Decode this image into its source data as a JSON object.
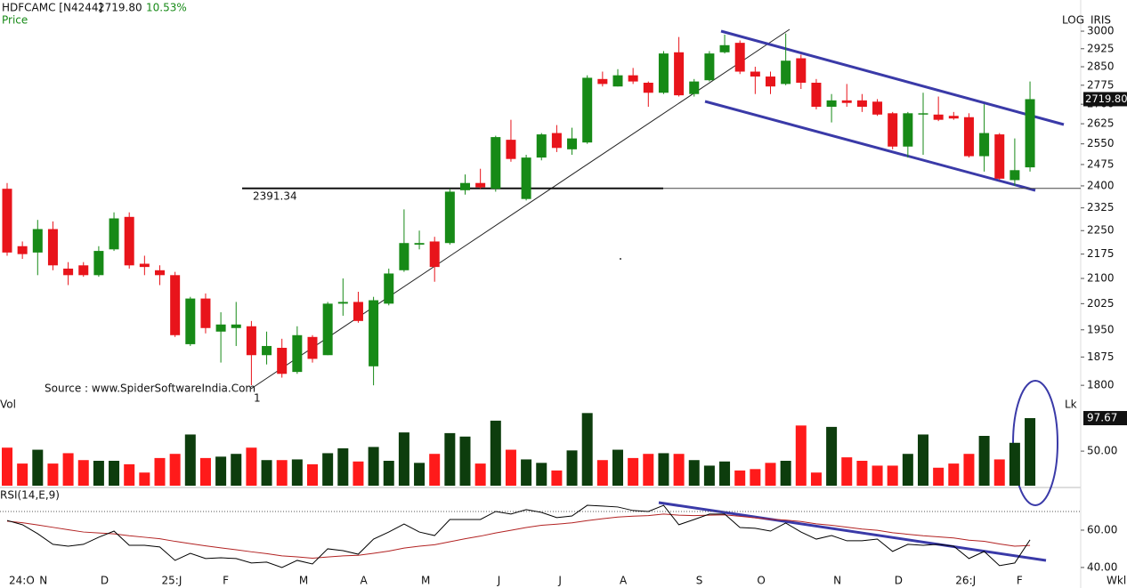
{
  "chart_data": [
    {
      "type": "candlestick",
      "title": "HDFCAMC [N4244]",
      "last_price": {
        "value": 2719.8,
        "label": "2719.80"
      },
      "change": {
        "value": 10.53,
        "label": "10.53%"
      },
      "ylabel": "Price",
      "scale_label": "LOG",
      "source_label": "IRIS",
      "log": true,
      "timeframe": "Wkl",
      "annotation": "Source : www.SpiderSoftwareIndia.Com",
      "marker": "1",
      "hline": 2391.34,
      "up_color": "#178a17",
      "down_color": "#e8141b",
      "categories": [
        "24:O",
        null,
        "N",
        null,
        null,
        null,
        "D",
        null,
        null,
        null,
        "25:J",
        null,
        null,
        null,
        "F",
        null,
        null,
        null,
        null,
        "M",
        null,
        null,
        null,
        "A",
        null,
        null,
        null,
        "M",
        null,
        null,
        null,
        null,
        "J",
        null,
        null,
        null,
        "J",
        null,
        null,
        null,
        "A",
        null,
        null,
        null,
        null,
        "S",
        null,
        null,
        null,
        "O",
        null,
        null,
        null,
        null,
        "N",
        null,
        null,
        null,
        "D",
        null,
        null,
        null,
        "26:J",
        null,
        null,
        null,
        "F",
        null
      ],
      "open": [
        2390,
        2200,
        2180,
        2255,
        2130,
        2140,
        2110,
        2190,
        2295,
        2145,
        2125,
        2110,
        1910,
        2040,
        1945,
        1955,
        1960,
        1880,
        1900,
        1835,
        1930,
        1880,
        2025,
        2030,
        1850,
        2025,
        2125,
        2205,
        2215,
        2210,
        2385,
        2410,
        2390,
        2565,
        2355,
        2500,
        2590,
        2530,
        2555,
        2800,
        2770,
        2815,
        2785,
        2745,
        2910,
        2740,
        2795,
        2910,
        2950,
        2830,
        2810,
        2780,
        2885,
        2785,
        2690,
        2715,
        2715,
        2710,
        2665,
        2540,
        2660,
        2660,
        2655,
        2650,
        2505,
        2585,
        2420,
        2465
      ],
      "high": [
        2410,
        2215,
        2285,
        2280,
        2150,
        2150,
        2200,
        2310,
        2310,
        2170,
        2140,
        2120,
        2045,
        2055,
        2000,
        2030,
        1975,
        1945,
        1925,
        1960,
        1935,
        2030,
        2100,
        2060,
        2045,
        2130,
        2320,
        2250,
        2230,
        2390,
        2440,
        2460,
        2580,
        2640,
        2510,
        2590,
        2620,
        2610,
        2815,
        2830,
        2840,
        2845,
        2790,
        2915,
        2975,
        2800,
        2915,
        2985,
        2960,
        2850,
        2830,
        2990,
        2900,
        2800,
        2740,
        2780,
        2740,
        2720,
        2670,
        2670,
        2745,
        2730,
        2670,
        2665,
        2700,
        2590,
        2570,
        2790
      ],
      "low": [
        2170,
        2160,
        2110,
        2125,
        2080,
        2105,
        2105,
        2185,
        2130,
        2110,
        2080,
        1930,
        1905,
        1940,
        1860,
        1905,
        1800,
        1855,
        1820,
        1830,
        1860,
        1880,
        1990,
        1970,
        1800,
        2020,
        2120,
        2190,
        2090,
        2205,
        2370,
        2390,
        2380,
        2485,
        2350,
        2490,
        2520,
        2510,
        2550,
        2770,
        2770,
        2780,
        2690,
        2740,
        2730,
        2730,
        2790,
        2905,
        2820,
        2740,
        2740,
        2775,
        2760,
        2680,
        2630,
        2690,
        2670,
        2655,
        2530,
        2500,
        2510,
        2635,
        2640,
        2500,
        2450,
        2420,
        2400,
        2450
      ],
      "close": [
        2180,
        2175,
        2255,
        2140,
        2110,
        2110,
        2185,
        2290,
        2140,
        2135,
        2110,
        1935,
        2040,
        1955,
        1965,
        1965,
        1880,
        1905,
        1830,
        1935,
        1870,
        2025,
        2030,
        1975,
        2035,
        2115,
        2210,
        2210,
        2135,
        2380,
        2410,
        2395,
        2575,
        2495,
        2500,
        2585,
        2535,
        2570,
        2805,
        2780,
        2815,
        2790,
        2745,
        2905,
        2735,
        2790,
        2905,
        2940,
        2830,
        2810,
        2770,
        2875,
        2785,
        2690,
        2715,
        2705,
        2690,
        2660,
        2540,
        2665,
        2665,
        2640,
        2645,
        2505,
        2590,
        2425,
        2455,
        2719.8
      ],
      "ylim": [
        1766,
        3138
      ],
      "yticks": [
        3000,
        2925,
        2850,
        2775,
        2700,
        2625,
        2550,
        2475,
        2400,
        2325,
        2250,
        2175,
        2100,
        2025,
        1950,
        1875,
        1800
      ]
    },
    {
      "type": "bar",
      "ylabel": "Vol",
      "unit_label": "Lk",
      "up_color": "#0d3d0d",
      "down_color": "#ff1a1a",
      "values": [
        55,
        32,
        52,
        32,
        47,
        37,
        36,
        36,
        31,
        19,
        40,
        46,
        74,
        40,
        42,
        46,
        55,
        37,
        37,
        38,
        31,
        47,
        54,
        35,
        56,
        36,
        77,
        33,
        46,
        76,
        71,
        32,
        94,
        52,
        38,
        33,
        22,
        51,
        105,
        37,
        52,
        40,
        46,
        47,
        46,
        37,
        29,
        35,
        22,
        24,
        33,
        36,
        87,
        19,
        85,
        41,
        36,
        29,
        29,
        46,
        74,
        26,
        32,
        46,
        72,
        38,
        62,
        97.67
      ],
      "ylim": [
        0,
        117
      ],
      "yticks": [
        {
          "value": 50,
          "label": "50.00"
        }
      ]
    },
    {
      "type": "line",
      "title": "RSI(14,E,9)",
      "hlines": [
        70
      ],
      "series": [
        {
          "color": "#000000",
          "values": [
            65.2,
            62.9,
            58.1,
            52.4,
            51.4,
            52.4,
            56.2,
            59.5,
            51.9,
            51.9,
            51.0,
            43.8,
            47.6,
            44.8,
            45.2,
            44.8,
            42.4,
            42.9,
            40.0,
            43.8,
            41.9,
            50.0,
            49.0,
            47.1,
            55.2,
            59.0,
            63.3,
            59.0,
            57.1,
            65.7,
            65.7,
            65.7,
            70.0,
            68.6,
            71.0,
            69.5,
            66.7,
            67.6,
            73.3,
            72.9,
            72.4,
            70.5,
            70.0,
            73.3,
            62.9,
            65.7,
            68.6,
            68.6,
            61.4,
            61.0,
            59.5,
            63.8,
            59.0,
            55.2,
            57.1,
            54.3,
            54.3,
            55.2,
            48.6,
            52.4,
            51.9,
            52.4,
            51.4,
            44.8,
            48.6,
            41.0,
            42.4,
            54.8
          ]
        },
        {
          "color": "#b22222",
          "values": [
            64.8,
            64.0,
            62.8,
            61.5,
            60.2,
            59.0,
            58.5,
            58.0,
            57.0,
            56.2,
            55.4,
            54.0,
            52.8,
            51.6,
            50.5,
            49.5,
            48.4,
            47.4,
            46.2,
            45.7,
            45.0,
            45.6,
            46.2,
            46.5,
            47.6,
            48.8,
            50.4,
            51.4,
            52.2,
            53.8,
            55.4,
            56.8,
            58.5,
            59.9,
            61.4,
            62.6,
            63.2,
            63.9,
            65.1,
            66.1,
            67.0,
            67.5,
            67.8,
            68.6,
            68.0,
            67.8,
            68.0,
            68.2,
            67.4,
            66.6,
            65.8,
            65.4,
            64.6,
            63.4,
            62.6,
            61.6,
            60.6,
            59.9,
            58.6,
            57.8,
            57.0,
            56.4,
            55.8,
            54.6,
            54.0,
            52.6,
            51.4,
            51.8
          ]
        }
      ],
      "ylim": [
        33.3,
        81.9
      ],
      "yticks": [
        {
          "value": 60,
          "label": "60.00"
        },
        {
          "value": 40,
          "label": "40.00"
        }
      ]
    }
  ]
}
